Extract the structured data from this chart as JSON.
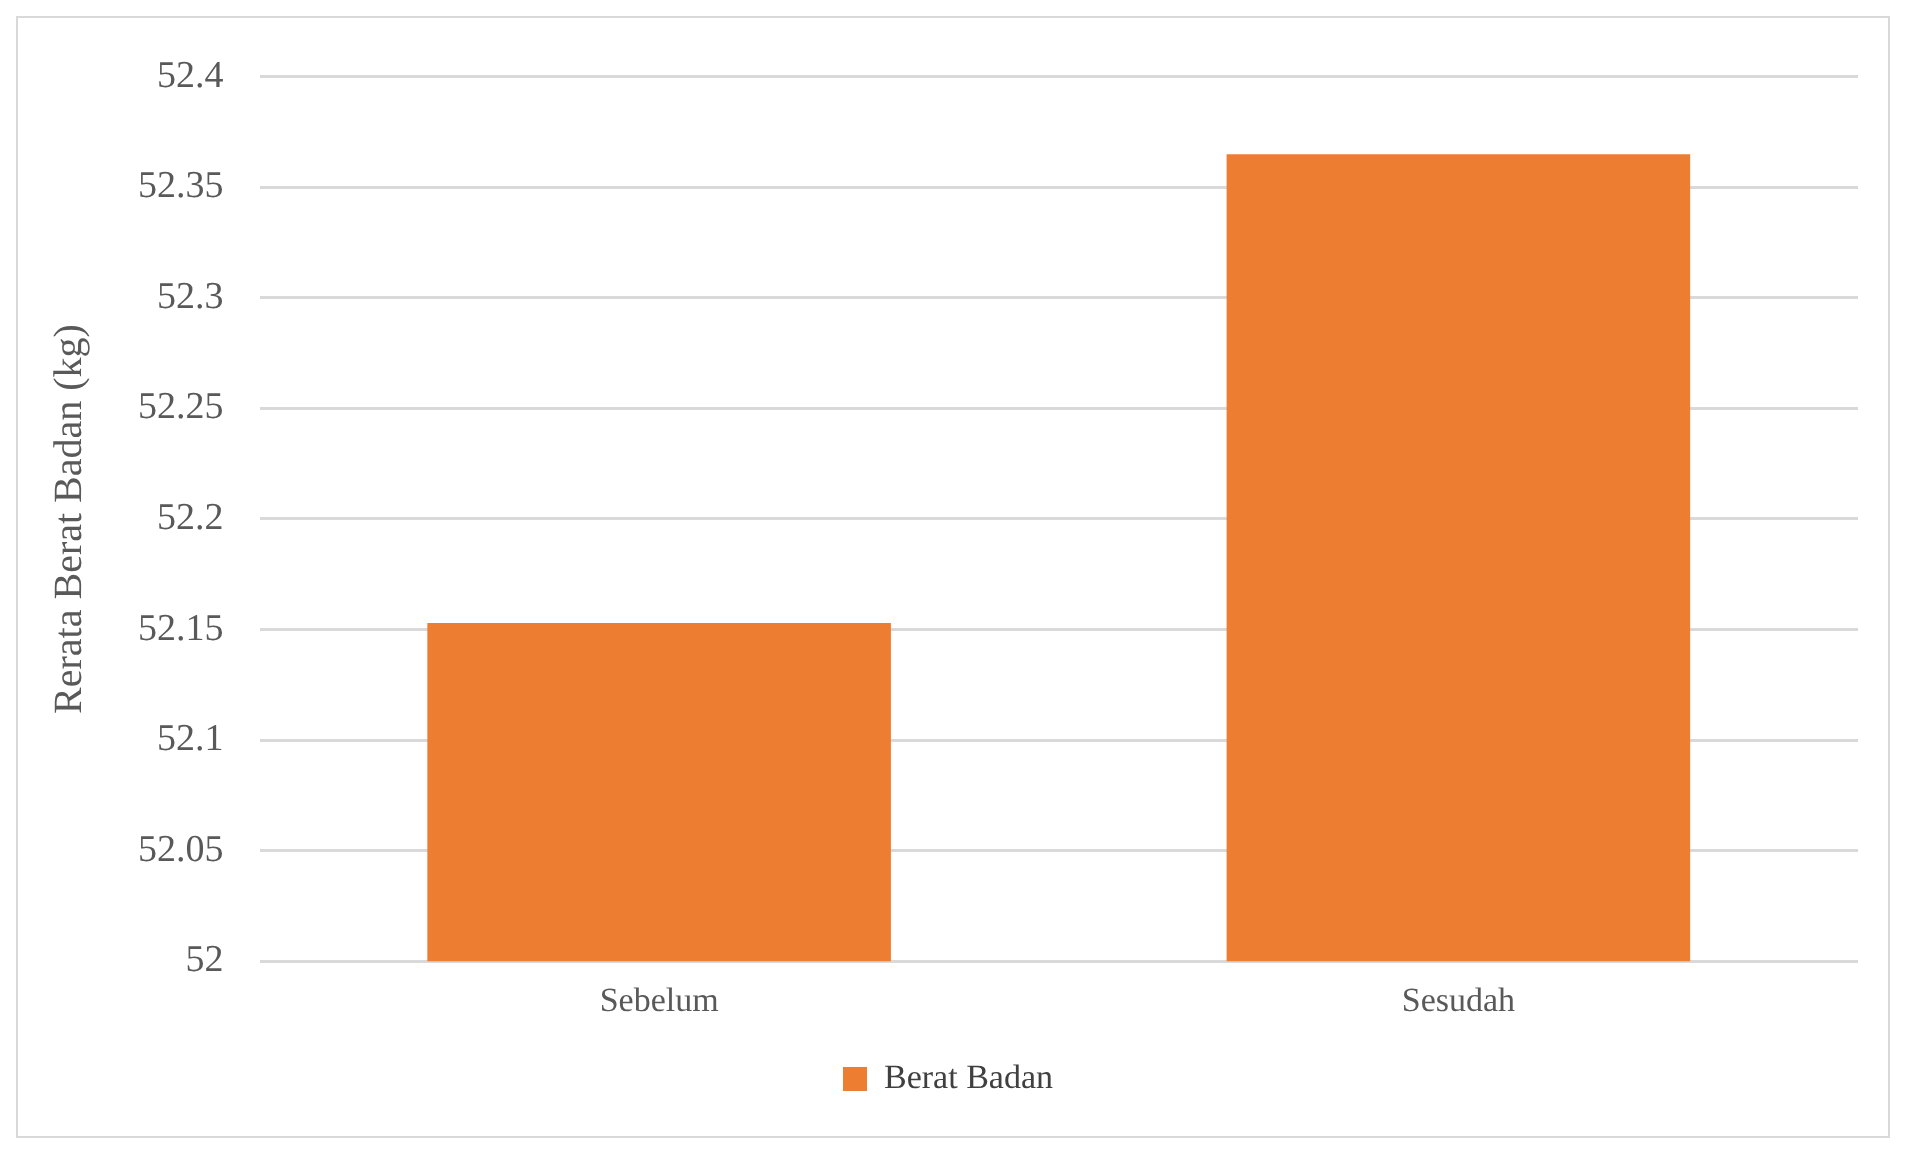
{
  "chart_data": {
    "type": "bar",
    "ylabel": "Rerata Berat Badan (kg)",
    "categories": [
      "Sebelum",
      "Sesudah"
    ],
    "series": [
      {
        "name": "Berat Badan",
        "color": "#ed7d31",
        "values": [
          52.153,
          52.365
        ]
      }
    ],
    "ylim": [
      52,
      52.4
    ],
    "yticks": [
      52,
      52.05,
      52.1,
      52.15,
      52.2,
      52.25,
      52.3,
      52.35,
      52.4
    ],
    "grid": "y",
    "legend": "bottom"
  }
}
